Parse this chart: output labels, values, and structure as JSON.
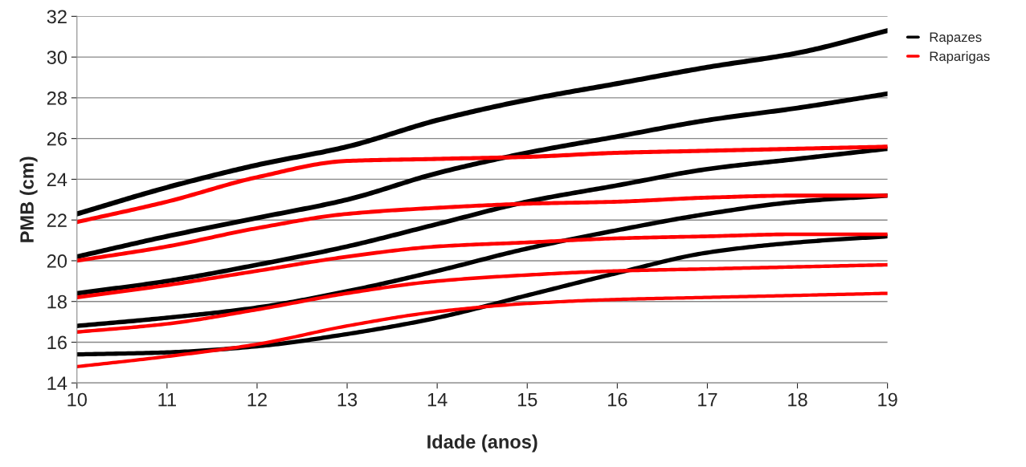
{
  "chart_data": {
    "type": "line",
    "xlabel": "Idade (anos)",
    "ylabel": "PMB (cm)",
    "x": [
      10,
      11,
      12,
      13,
      14,
      15,
      16,
      17,
      18,
      19
    ],
    "xlim": [
      10,
      19
    ],
    "xticks": [
      10,
      11,
      12,
      13,
      14,
      15,
      16,
      17,
      18,
      19
    ],
    "ylim": [
      14,
      32
    ],
    "yticks": [
      14,
      16,
      18,
      20,
      22,
      24,
      26,
      28,
      30,
      32
    ],
    "grid": "y",
    "legend": "top right",
    "marker": "none",
    "line_style": "solid",
    "series": [
      {
        "name": "Rapazes",
        "color": "#000000",
        "values": [
          22.3,
          23.6,
          24.7,
          25.6,
          26.9,
          27.9,
          28.7,
          29.5,
          30.2,
          31.3
        ]
      },
      {
        "color": "#000000",
        "values": [
          20.2,
          21.2,
          22.1,
          23.0,
          24.3,
          25.3,
          26.1,
          26.9,
          27.5,
          28.2
        ]
      },
      {
        "color": "#000000",
        "values": [
          18.4,
          19.0,
          19.8,
          20.7,
          21.8,
          22.9,
          23.7,
          24.5,
          25.0,
          25.5
        ]
      },
      {
        "color": "#000000",
        "values": [
          16.8,
          17.2,
          17.7,
          18.5,
          19.5,
          20.6,
          21.5,
          22.3,
          22.9,
          23.2
        ]
      },
      {
        "color": "#000000",
        "values": [
          15.4,
          15.5,
          15.8,
          16.4,
          17.2,
          18.3,
          19.4,
          20.4,
          20.9,
          21.2
        ]
      },
      {
        "name": "Raparigas",
        "color": "#ff0000",
        "values": [
          21.9,
          22.9,
          24.1,
          24.9,
          25.0,
          25.1,
          25.3,
          25.4,
          25.5,
          25.6
        ]
      },
      {
        "color": "#ff0000",
        "values": [
          20.0,
          20.7,
          21.6,
          22.3,
          22.6,
          22.8,
          22.9,
          23.1,
          23.2,
          23.2
        ]
      },
      {
        "color": "#ff0000",
        "values": [
          18.2,
          18.8,
          19.5,
          20.2,
          20.7,
          20.9,
          21.1,
          21.2,
          21.3,
          21.3
        ]
      },
      {
        "color": "#ff0000",
        "values": [
          16.5,
          16.9,
          17.6,
          18.4,
          19.0,
          19.3,
          19.5,
          19.6,
          19.7,
          19.8
        ]
      },
      {
        "color": "#ff0000",
        "values": [
          14.8,
          15.3,
          15.9,
          16.8,
          17.5,
          17.9,
          18.1,
          18.2,
          18.3,
          18.4
        ]
      }
    ]
  }
}
